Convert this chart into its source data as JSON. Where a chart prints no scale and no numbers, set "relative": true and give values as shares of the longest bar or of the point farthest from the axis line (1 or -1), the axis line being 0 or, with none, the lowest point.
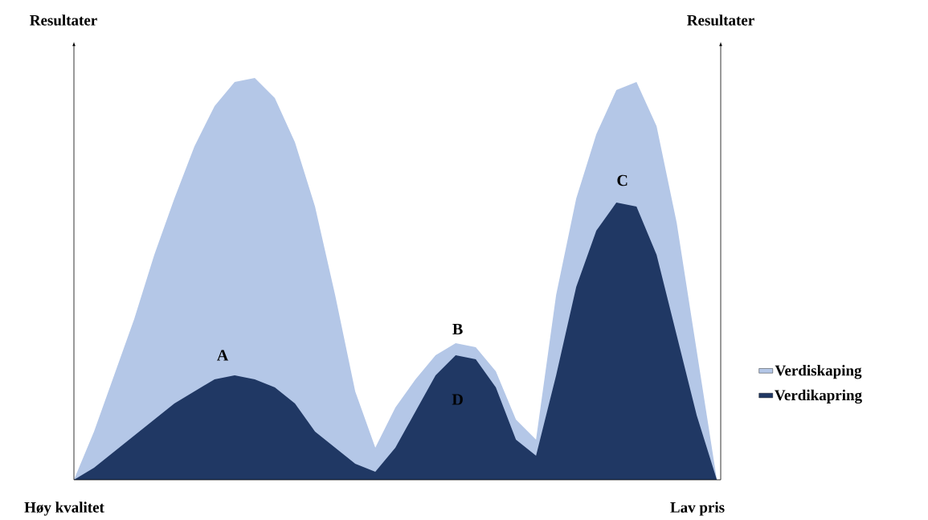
{
  "chart_data": {
    "type": "area",
    "relative": true,
    "ylabel": "Resultater",
    "y2label": "Resultater",
    "legend": "right",
    "categories": [
      null,
      null,
      null,
      null,
      null,
      null,
      null,
      null,
      null,
      null,
      null,
      null,
      null,
      null,
      null,
      null,
      null,
      null,
      null,
      null,
      null,
      null,
      null,
      null,
      null,
      null,
      null,
      null,
      null,
      null,
      null,
      null,
      null
    ],
    "series": [
      {
        "name": "Verdiskaping",
        "color": "#b4c7e7",
        "values": [
          0,
          0.12,
          0.26,
          0.4,
          0.56,
          0.7,
          0.83,
          0.93,
          0.99,
          1,
          0.95,
          0.84,
          0.68,
          0.46,
          0.22,
          0.08,
          0.18,
          0.25,
          0.31,
          0.34,
          0.33,
          0.27,
          0.15,
          0.1,
          0.46,
          0.7,
          0.86,
          0.97,
          0.99,
          0.88,
          0.64,
          0.32,
          0
        ]
      },
      {
        "name": "Verdikapring",
        "color": "#203864",
        "values": [
          0,
          0.03,
          0.07,
          0.11,
          0.15,
          0.19,
          0.22,
          0.25,
          0.26,
          0.25,
          0.23,
          0.19,
          0.12,
          0.08,
          0.04,
          0.02,
          0.08,
          0.17,
          0.26,
          0.31,
          0.3,
          0.23,
          0.1,
          0.06,
          0.26,
          0.48,
          0.62,
          0.69,
          0.68,
          0.56,
          0.36,
          0.16,
          0
        ]
      }
    ],
    "annotations": [
      "A",
      "B",
      "C",
      "D",
      "Høy kvalitet",
      "Lav pris"
    ]
  }
}
